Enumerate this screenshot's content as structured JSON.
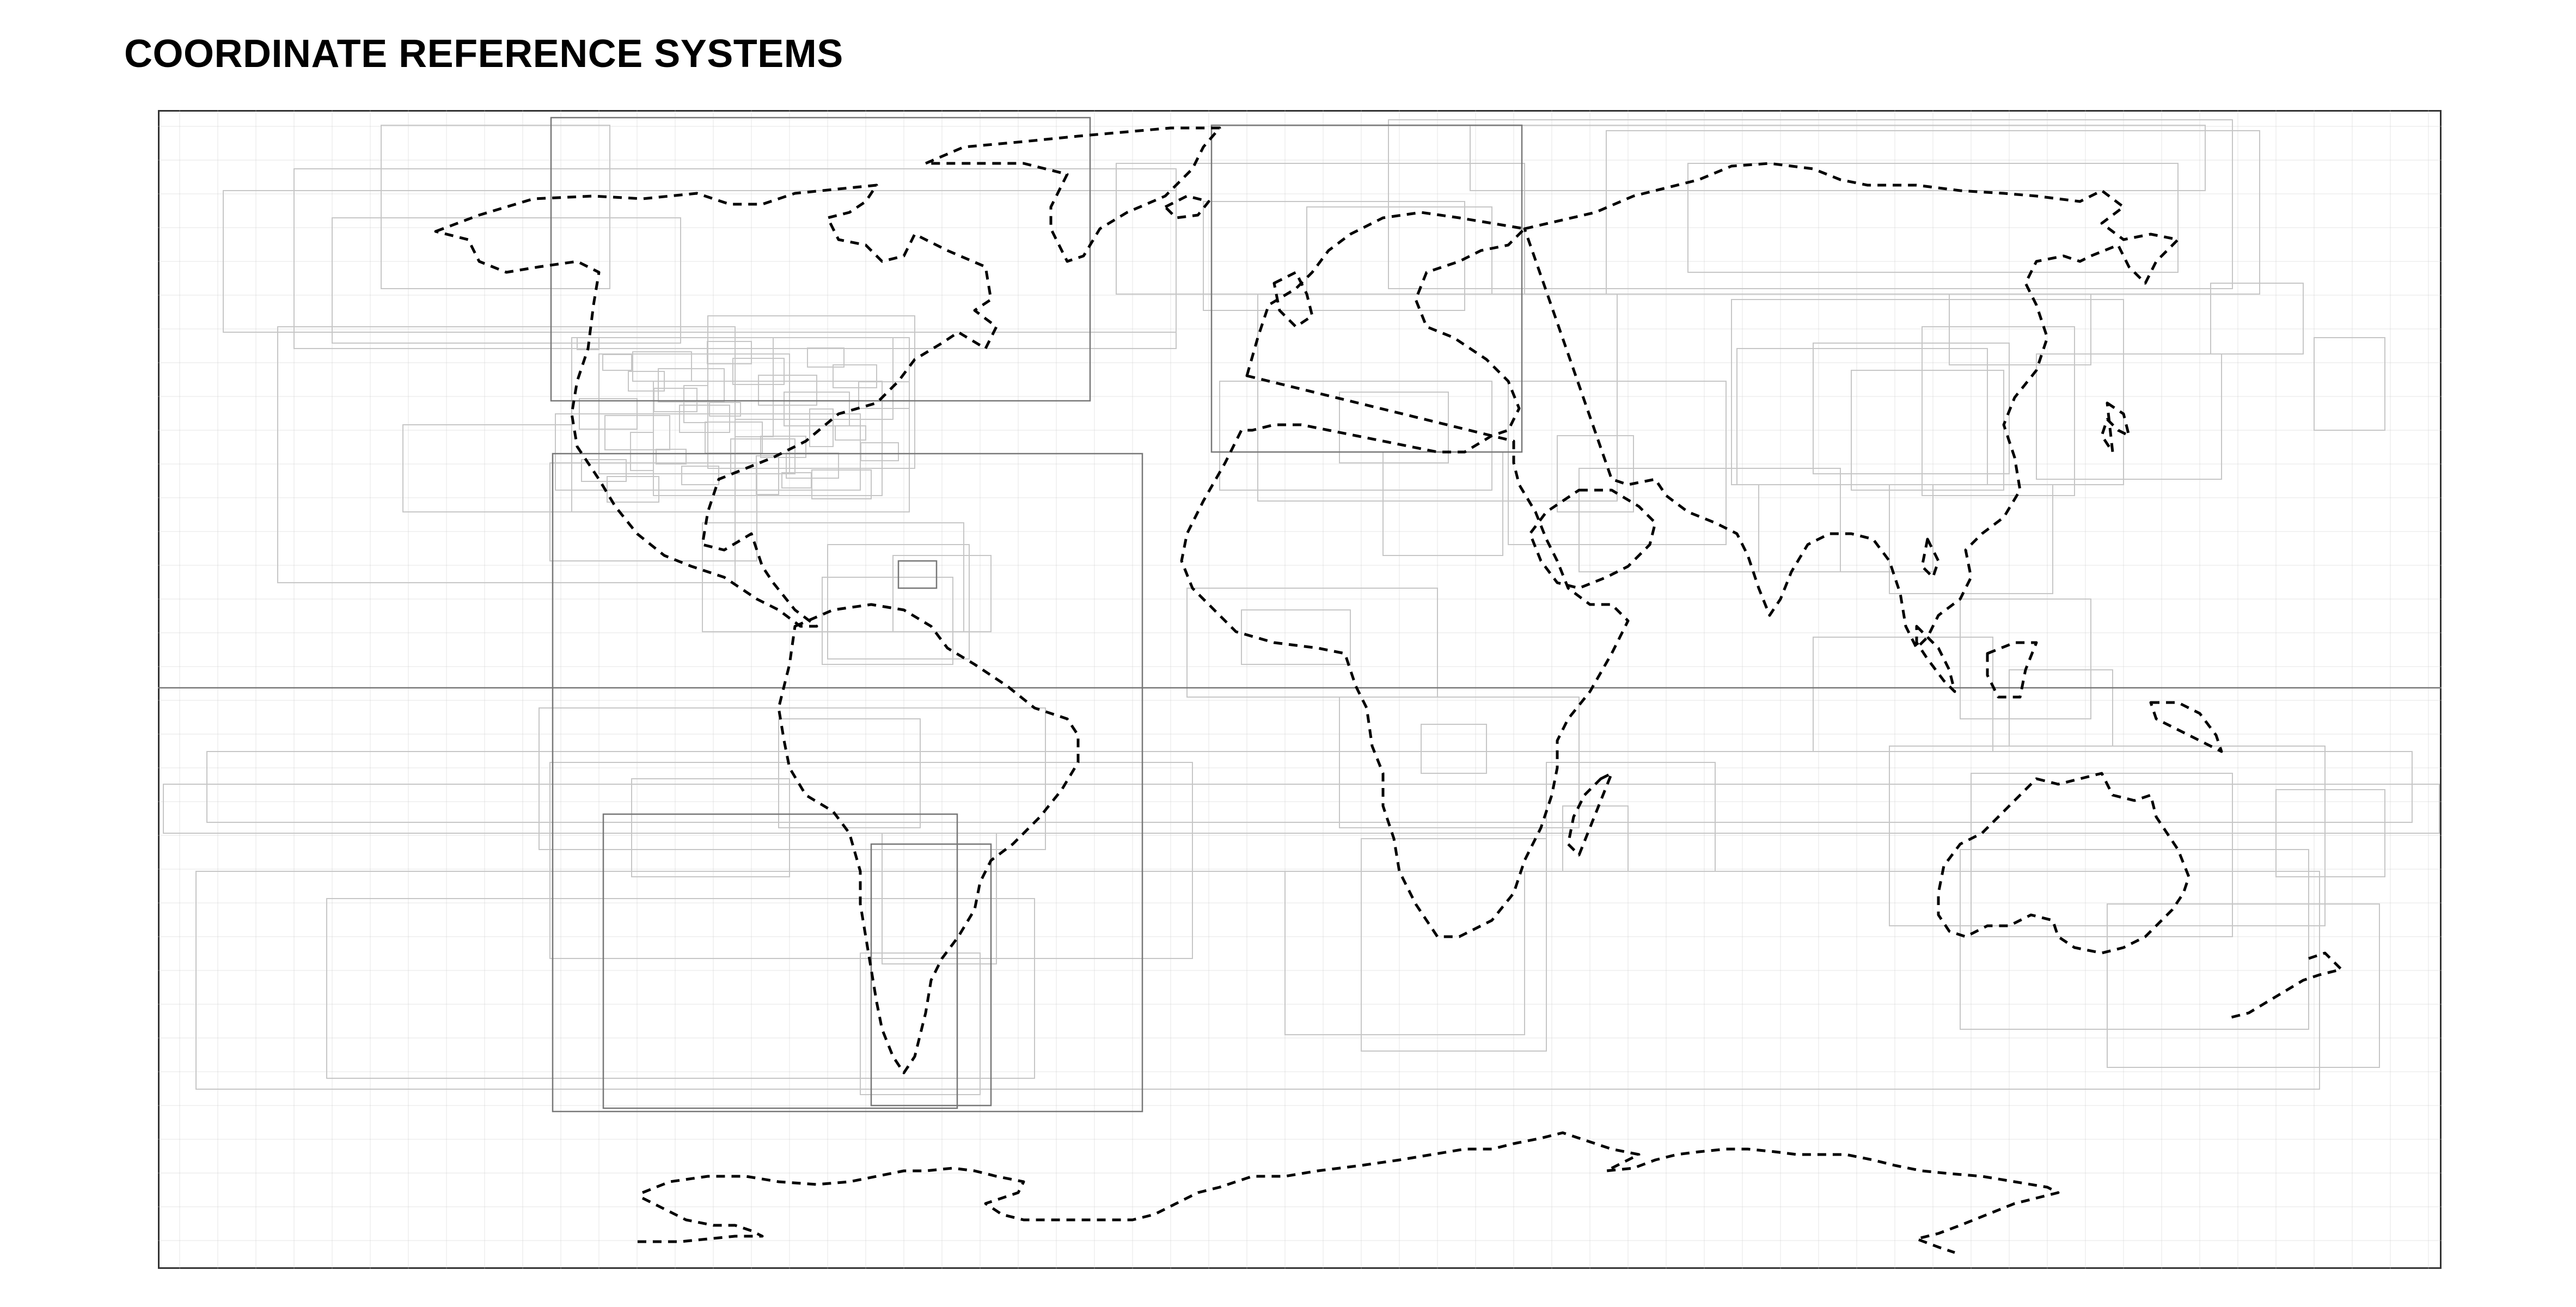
{
  "title": "COORDINATE REFERENCE SYSTEMS",
  "map": {
    "colors": {
      "coastline": "#000000",
      "crs_extent_faint": "#c6c6c6",
      "crs_extent_dark": "#777777",
      "frame": "#333333",
      "background": "#ffffff"
    },
    "landmasses": [
      "north-america",
      "greenland",
      "south-america",
      "europe-africa",
      "asia",
      "arabia",
      "madagascar",
      "japan",
      "taiwan",
      "borneo-indonesia",
      "new-guinea",
      "australia",
      "new-zealand",
      "antarctica",
      "britain",
      "iceland"
    ]
  }
}
